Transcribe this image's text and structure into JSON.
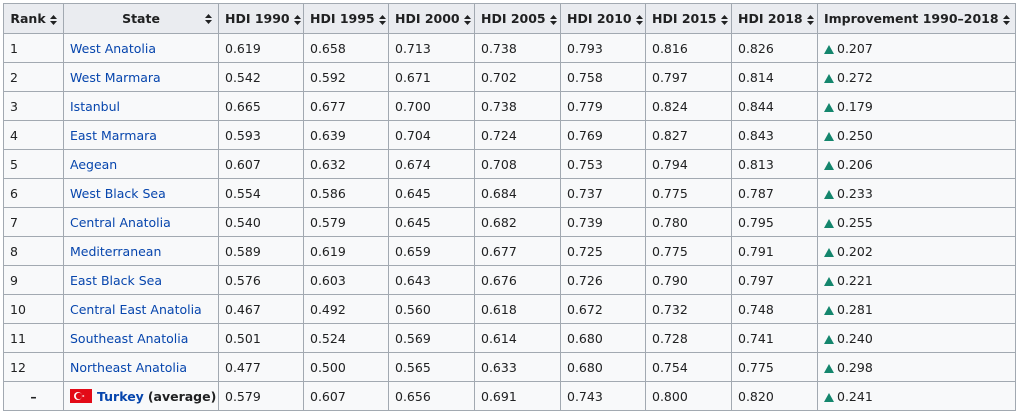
{
  "table": {
    "headers": [
      "Rank",
      "State",
      "HDI 1990",
      "HDI 1995",
      "HDI 2000",
      "HDI 2005",
      "HDI 2010",
      "HDI 2015",
      "HDI 2018",
      "Improvement 1990–2018"
    ],
    "rows": [
      [
        "1",
        "West Anatolia",
        "0.619",
        "0.658",
        "0.713",
        "0.738",
        "0.793",
        "0.816",
        "0.826",
        "0.207"
      ],
      [
        "2",
        "West Marmara",
        "0.542",
        "0.592",
        "0.671",
        "0.702",
        "0.758",
        "0.797",
        "0.814",
        "0.272"
      ],
      [
        "3",
        "Istanbul",
        "0.665",
        "0.677",
        "0.700",
        "0.738",
        "0.779",
        "0.824",
        "0.844",
        "0.179"
      ],
      [
        "4",
        "East Marmara",
        "0.593",
        "0.639",
        "0.704",
        "0.724",
        "0.769",
        "0.827",
        "0.843",
        "0.250"
      ],
      [
        "5",
        "Aegean",
        "0.607",
        "0.632",
        "0.674",
        "0.708",
        "0.753",
        "0.794",
        "0.813",
        "0.206"
      ],
      [
        "6",
        "West Black Sea",
        "0.554",
        "0.586",
        "0.645",
        "0.684",
        "0.737",
        "0.775",
        "0.787",
        "0.233"
      ],
      [
        "7",
        "Central Anatolia",
        "0.540",
        "0.579",
        "0.645",
        "0.682",
        "0.739",
        "0.780",
        "0.795",
        "0.255"
      ],
      [
        "8",
        "Mediterranean",
        "0.589",
        "0.619",
        "0.659",
        "0.677",
        "0.725",
        "0.775",
        "0.791",
        "0.202"
      ],
      [
        "9",
        "East Black Sea",
        "0.576",
        "0.603",
        "0.643",
        "0.676",
        "0.726",
        "0.790",
        "0.797",
        "0.221"
      ],
      [
        "10",
        "Central East Anatolia",
        "0.467",
        "0.492",
        "0.560",
        "0.618",
        "0.672",
        "0.732",
        "0.748",
        "0.281"
      ],
      [
        "11",
        "Southeast Anatolia",
        "0.501",
        "0.524",
        "0.569",
        "0.614",
        "0.680",
        "0.728",
        "0.741",
        "0.240"
      ],
      [
        "12",
        "Northeast Anatolia",
        "0.477",
        "0.500",
        "0.565",
        "0.633",
        "0.680",
        "0.754",
        "0.775",
        "0.298"
      ]
    ],
    "average_row": [
      "–",
      "Turkey",
      "0.579",
      "0.607",
      "0.656",
      "0.691",
      "0.743",
      "0.800",
      "0.820",
      "0.241"
    ],
    "average_label": "(average)"
  }
}
